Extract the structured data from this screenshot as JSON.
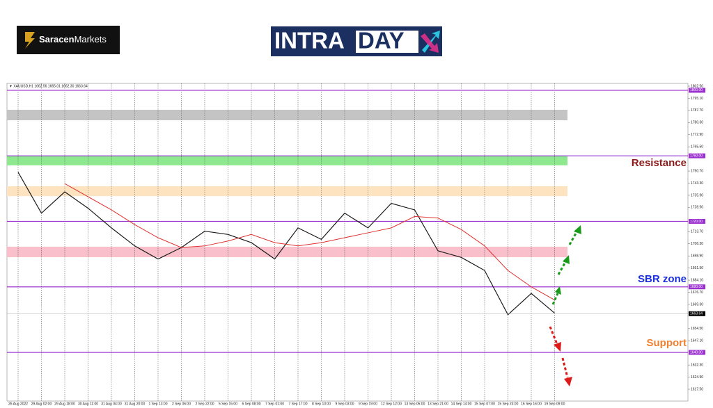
{
  "logos": {
    "brand_bold": "Saracen",
    "brand_regular": "Markets",
    "title_left": "INTRA",
    "title_right": "DAY"
  },
  "chart_data": {
    "type": "line",
    "header": "▼ XAUUSD,H1  1662.56 1665.01 1662.30 1663.64",
    "x": [
      "26 Aug 2022",
      "29 Aug 02:00",
      "29 Aug 18:00",
      "30 Aug 11:00",
      "31 Aug 04:00",
      "31 Aug 20:00",
      "1 Sep 13:00",
      "2 Sep 06:00",
      "2 Sep 22:00",
      "5 Sep 15:00",
      "6 Sep 08:00",
      "7 Sep 01:00",
      "7 Sep 17:00",
      "8 Sep 10:00",
      "9 Sep 03:00",
      "9 Sep 19:00",
      "12 Sep 12:00",
      "13 Sep 05:00",
      "13 Sep 21:00",
      "14 Sep 14:00",
      "15 Sep 07:00",
      "15 Sep 23:00",
      "16 Sep 16:00",
      "19 Sep 09:00"
    ],
    "series": [
      {
        "color": "#1a1a1a",
        "values": [
          1750,
          1725,
          1738,
          1728,
          1716,
          1705,
          1697,
          1704,
          1714,
          1712,
          1707,
          1697,
          1716,
          1709,
          1725,
          1716,
          1731,
          1727,
          1702,
          1698,
          1690,
          1663,
          1676,
          1664
        ]
      },
      {
        "color": "#e03030",
        "values": [
          null,
          null,
          1743,
          1735,
          1727,
          1718,
          1710,
          1704,
          1705,
          1708,
          1712,
          1707,
          1705,
          1707,
          1710,
          1713,
          1716,
          1723,
          1722,
          1715,
          1705,
          1690,
          1680,
          1672
        ]
      }
    ],
    "ylim": [
      1610.3,
      1804.2
    ],
    "yticks": [
      {
        "value": 1802.5,
        "label": "1802.50"
      },
      {
        "value": 1795.1,
        "label": "1795.10"
      },
      {
        "value": 1787.7,
        "label": "1787.70"
      },
      {
        "value": 1780.3,
        "label": "1780.30"
      },
      {
        "value": 1772.9,
        "label": "1772.90"
      },
      {
        "value": 1765.5,
        "label": "1765.50"
      },
      {
        "value": 1750.7,
        "label": "1750.70"
      },
      {
        "value": 1743.3,
        "label": "1743.30"
      },
      {
        "value": 1735.9,
        "label": "1735.90"
      },
      {
        "value": 1728.5,
        "label": "1728.50"
      },
      {
        "value": 1713.7,
        "label": "1713.70"
      },
      {
        "value": 1706.3,
        "label": "1706.30"
      },
      {
        "value": 1698.9,
        "label": "1698.90"
      },
      {
        "value": 1691.5,
        "label": "1691.50"
      },
      {
        "value": 1684.1,
        "label": "1684.10"
      },
      {
        "value": 1676.7,
        "label": "1676.70"
      },
      {
        "value": 1669.3,
        "label": "1669.30"
      },
      {
        "value": 1654.5,
        "label": "1654.50"
      },
      {
        "value": 1647.1,
        "label": "1647.10"
      },
      {
        "value": 1632.3,
        "label": "1632.30"
      },
      {
        "value": 1624.9,
        "label": "1624.90"
      },
      {
        "value": 1617.5,
        "label": "1617.50"
      }
    ],
    "levels": [
      {
        "value": 1800,
        "label": "1800.00"
      },
      {
        "value": 1760,
        "label": "1760.00"
      },
      {
        "value": 1720,
        "label": "1720.00"
      },
      {
        "value": 1680,
        "label": "1680.00"
      },
      {
        "value": 1640,
        "label": "1640.00"
      }
    ],
    "level_color": "#9b30d0",
    "zones": [
      {
        "from": 1781.7,
        "to": 1788.1,
        "color": "#c4c4c4"
      },
      {
        "from": 1754.2,
        "to": 1760,
        "color": "#8ee88e"
      },
      {
        "from": 1735.4,
        "to": 1741.4,
        "color": "#fde3c0"
      },
      {
        "from": 1698.1,
        "to": 1704.5,
        "color": "#f9c0cc"
      }
    ],
    "current": {
      "value": 1663.64,
      "label": "1663.64"
    },
    "annotations": [
      {
        "text": "Resistance",
        "color": "#8b1a1a"
      },
      {
        "text": "SBR zone",
        "color": "#1a2ee0"
      },
      {
        "text": "Support",
        "color": "#f08030"
      }
    ],
    "grid": true
  }
}
